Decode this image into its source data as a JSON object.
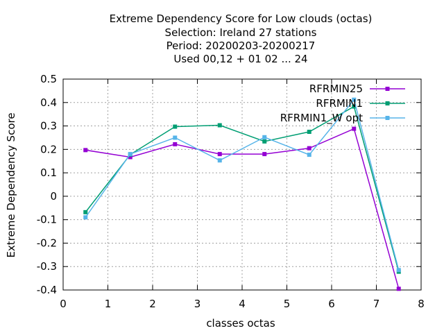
{
  "chart_data": {
    "type": "line",
    "title_lines": [
      "Extreme Dependency Score  for Low clouds (octas)",
      "Selection: Ireland      27 stations",
      "Period: 20200203-20200217",
      "Used  00,12  + 01 02 ... 24"
    ],
    "xlabel": "classes octas",
    "ylabel": "Extreme Dependency Score",
    "xlim": [
      0,
      8
    ],
    "ylim": [
      -0.4,
      0.5
    ],
    "x_ticks": [
      "0",
      "1",
      "2",
      "3",
      "4",
      "5",
      "6",
      "7",
      "8"
    ],
    "y_ticks": [
      "-0.4",
      "-0.3",
      "-0.2",
      "-0.1",
      "0",
      "0.1",
      "0.2",
      "0.3",
      "0.4",
      "0.5"
    ],
    "x_tick_values": [
      0,
      1,
      2,
      3,
      4,
      5,
      6,
      7,
      8
    ],
    "y_tick_values": [
      -0.4,
      -0.3,
      -0.2,
      -0.1,
      0,
      0.1,
      0.2,
      0.3,
      0.4,
      0.5
    ],
    "grid": true,
    "legend_position": "top-right",
    "x": [
      0.5,
      1.5,
      2.5,
      3.5,
      4.5,
      5.5,
      6.5,
      7.5
    ],
    "series": [
      {
        "name": "RFRMIN25",
        "color": "#9400d3",
        "values": [
          0.197,
          0.167,
          0.222,
          0.18,
          0.18,
          0.205,
          0.288,
          -0.395
        ]
      },
      {
        "name": "RFRMIN1",
        "color": "#009e73",
        "values": [
          -0.068,
          0.178,
          0.297,
          0.303,
          0.234,
          0.275,
          0.383,
          -0.322
        ]
      },
      {
        "name": "RFRMIN1_W opt",
        "color": "#56b4e9",
        "values": [
          -0.09,
          0.18,
          0.25,
          0.153,
          0.252,
          0.177,
          0.412,
          -0.315
        ]
      }
    ]
  }
}
